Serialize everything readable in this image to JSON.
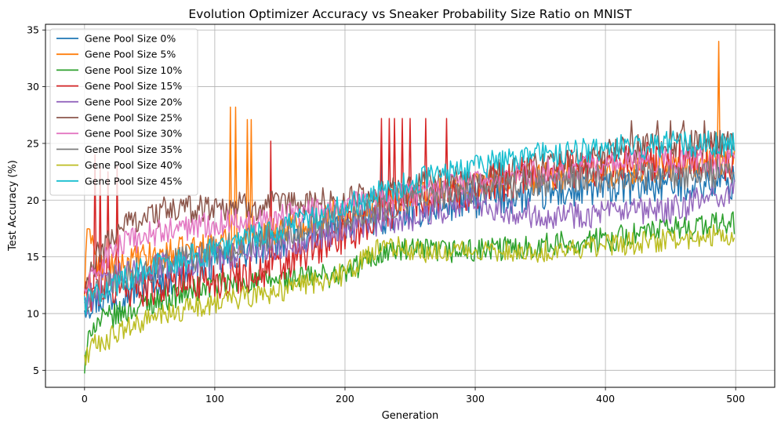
{
  "chart_data": {
    "type": "line",
    "title": "Evolution Optimizer Accuracy vs Sneaker Probability Size Ratio on MNIST",
    "xlabel": "Generation",
    "ylabel": "Test Accuracy (%)",
    "xlim": [
      -30,
      530
    ],
    "ylim": [
      3.5,
      35.5
    ],
    "xticks": [
      0,
      100,
      200,
      300,
      400,
      500
    ],
    "yticks": [
      5,
      10,
      15,
      20,
      25,
      30,
      35
    ],
    "grid": true,
    "legend_position": "top-left",
    "series": [
      {
        "name": "Gene Pool Size 0%",
        "color": "#1f77b4",
        "keypoints": [
          [
            0,
            11
          ],
          [
            20,
            11.5
          ],
          [
            50,
            12.5
          ],
          [
            100,
            14.5
          ],
          [
            150,
            16.5
          ],
          [
            200,
            18
          ],
          [
            250,
            19
          ],
          [
            300,
            20
          ],
          [
            350,
            20.5
          ],
          [
            400,
            21
          ],
          [
            450,
            21.5
          ],
          [
            499,
            21.5
          ]
        ],
        "noise": 1.6,
        "spikes": [
          [
            228,
            24
          ]
        ]
      },
      {
        "name": "Gene Pool Size 5%",
        "color": "#ff7f0e",
        "keypoints": [
          [
            0,
            12
          ],
          [
            3,
            18.5
          ],
          [
            10,
            14
          ],
          [
            50,
            15
          ],
          [
            100,
            16
          ],
          [
            150,
            17.5
          ],
          [
            200,
            19
          ],
          [
            250,
            20.5
          ],
          [
            300,
            21.5
          ],
          [
            350,
            22
          ],
          [
            400,
            22.5
          ],
          [
            450,
            23
          ],
          [
            499,
            23.5
          ]
        ],
        "noise": 1.3,
        "spikes": [
          [
            112,
            28.2
          ],
          [
            116,
            28.2
          ],
          [
            125,
            27.1
          ],
          [
            128,
            27.1
          ],
          [
            487,
            34
          ]
        ]
      },
      {
        "name": "Gene Pool Size 10%",
        "color": "#2ca02c",
        "keypoints": [
          [
            0,
            5
          ],
          [
            5,
            9
          ],
          [
            50,
            11
          ],
          [
            100,
            12.5
          ],
          [
            150,
            13
          ],
          [
            200,
            13.5
          ],
          [
            230,
            15.5
          ],
          [
            260,
            15.5
          ],
          [
            300,
            15.5
          ],
          [
            350,
            16
          ],
          [
            400,
            16.5
          ],
          [
            450,
            17.5
          ],
          [
            499,
            18
          ]
        ],
        "noise": 1.1,
        "spikes": []
      },
      {
        "name": "Gene Pool Size 15%",
        "color": "#d62728",
        "keypoints": [
          [
            0,
            12
          ],
          [
            5,
            12
          ],
          [
            50,
            12.5
          ],
          [
            100,
            13
          ],
          [
            150,
            14
          ],
          [
            200,
            17
          ],
          [
            250,
            20
          ],
          [
            300,
            21
          ],
          [
            350,
            22.5
          ],
          [
            400,
            23
          ],
          [
            450,
            23.5
          ],
          [
            499,
            23.5
          ]
        ],
        "noise": 1.8,
        "spikes": [
          [
            8,
            24
          ],
          [
            12,
            23
          ],
          [
            18,
            22.5
          ],
          [
            25,
            23
          ],
          [
            143,
            25.2
          ],
          [
            228,
            27.2
          ],
          [
            234,
            27.2
          ],
          [
            238,
            27.2
          ],
          [
            244,
            27.2
          ],
          [
            250,
            27.2
          ],
          [
            262,
            27.2
          ],
          [
            278,
            27.2
          ]
        ]
      },
      {
        "name": "Gene Pool Size 20%",
        "color": "#9467bd",
        "keypoints": [
          [
            0,
            11
          ],
          [
            20,
            13
          ],
          [
            50,
            14
          ],
          [
            100,
            15
          ],
          [
            150,
            16
          ],
          [
            200,
            17.5
          ],
          [
            250,
            18.5
          ],
          [
            300,
            20
          ],
          [
            330,
            19
          ],
          [
            350,
            18.8
          ],
          [
            400,
            18.8
          ],
          [
            450,
            19
          ],
          [
            499,
            21
          ]
        ],
        "noise": 1.3,
        "spikes": []
      },
      {
        "name": "Gene Pool Size 25%",
        "color": "#8c564b",
        "keypoints": [
          [
            0,
            12
          ],
          [
            10,
            15
          ],
          [
            30,
            18
          ],
          [
            60,
            19
          ],
          [
            100,
            19.5
          ],
          [
            150,
            19.5
          ],
          [
            200,
            20
          ],
          [
            250,
            21
          ],
          [
            300,
            22
          ],
          [
            350,
            23
          ],
          [
            400,
            24
          ],
          [
            450,
            25
          ],
          [
            499,
            25
          ]
        ],
        "noise": 1.3,
        "spikes": [
          [
            420,
            27
          ],
          [
            440,
            27
          ],
          [
            450,
            27
          ],
          [
            460,
            27
          ],
          [
            476,
            27
          ]
        ]
      },
      {
        "name": "Gene Pool Size 30%",
        "color": "#e377c2",
        "keypoints": [
          [
            0,
            12
          ],
          [
            20,
            15.5
          ],
          [
            50,
            17
          ],
          [
            100,
            18
          ],
          [
            150,
            18.5
          ],
          [
            200,
            19.5
          ],
          [
            250,
            20.5
          ],
          [
            300,
            21.5
          ],
          [
            350,
            22.5
          ],
          [
            400,
            23
          ],
          [
            450,
            23.5
          ],
          [
            499,
            23.5
          ]
        ],
        "noise": 1.2,
        "spikes": []
      },
      {
        "name": "Gene Pool Size 35%",
        "color": "#7f7f7f",
        "keypoints": [
          [
            0,
            11
          ],
          [
            20,
            13
          ],
          [
            50,
            14
          ],
          [
            100,
            15.5
          ],
          [
            150,
            17
          ],
          [
            200,
            18.5
          ],
          [
            250,
            20
          ],
          [
            300,
            21
          ],
          [
            350,
            21.5
          ],
          [
            400,
            22
          ],
          [
            450,
            22
          ],
          [
            499,
            22.5
          ]
        ],
        "noise": 1.3,
        "spikes": []
      },
      {
        "name": "Gene Pool Size 40%",
        "color": "#bcbd22",
        "keypoints": [
          [
            0,
            6
          ],
          [
            5,
            7
          ],
          [
            30,
            8.5
          ],
          [
            50,
            9.5
          ],
          [
            100,
            11
          ],
          [
            150,
            12
          ],
          [
            200,
            13.5
          ],
          [
            230,
            16
          ],
          [
            260,
            15.5
          ],
          [
            300,
            15.5
          ],
          [
            350,
            15.5
          ],
          [
            400,
            16
          ],
          [
            450,
            16.5
          ],
          [
            499,
            17
          ]
        ],
        "noise": 1.0,
        "spikes": []
      },
      {
        "name": "Gene Pool Size 45%",
        "color": "#17becf",
        "keypoints": [
          [
            0,
            11
          ],
          [
            20,
            12.5
          ],
          [
            50,
            14
          ],
          [
            100,
            15.5
          ],
          [
            150,
            17.5
          ],
          [
            200,
            19.5
          ],
          [
            250,
            21.5
          ],
          [
            300,
            23
          ],
          [
            350,
            24
          ],
          [
            400,
            24.5
          ],
          [
            450,
            25
          ],
          [
            499,
            25
          ]
        ],
        "noise": 1.2,
        "spikes": []
      }
    ]
  }
}
